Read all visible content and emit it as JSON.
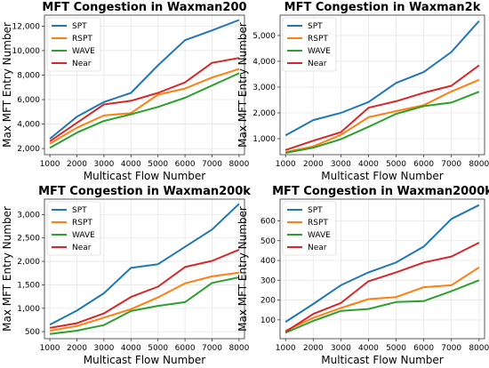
{
  "chart_data": [
    {
      "type": "line",
      "title": "MFT Congestion in Waxman200",
      "xlabel": "Multicast Flow Number",
      "ylabel": "Max MFT Entry Number",
      "x": [
        1000,
        2000,
        3000,
        4000,
        5000,
        6000,
        7000,
        8000
      ],
      "xlim": [
        800,
        8200
      ],
      "ylim": [
        1500,
        12900
      ],
      "yticks": [
        2000,
        4000,
        6000,
        8000,
        10000,
        12000
      ],
      "ytick_labels": [
        "2,000",
        "4,000",
        "6,000",
        "8,000",
        "10,000",
        "12,000"
      ],
      "grid": true,
      "legend": "top-left",
      "series": [
        {
          "name": "SPT",
          "color": "#1f77b4",
          "values": [
            2800,
            4600,
            5800,
            6550,
            8800,
            10850,
            11650,
            12500
          ]
        },
        {
          "name": "RSPT",
          "color": "#ff7f0e",
          "values": [
            2400,
            3700,
            4700,
            4900,
            6400,
            6900,
            7800,
            8500
          ]
        },
        {
          "name": "WAVE",
          "color": "#2ca02c",
          "values": [
            2050,
            3300,
            4250,
            4800,
            5400,
            6150,
            7150,
            8150
          ]
        },
        {
          "name": "Near",
          "color": "#d62728",
          "values": [
            2600,
            4100,
            5600,
            5900,
            6550,
            7400,
            9000,
            9400
          ]
        }
      ]
    },
    {
      "type": "line",
      "title": "MFT Congestion in Waxman2k",
      "xlabel": "Multicast Flow Number",
      "ylabel": "Max MFT Entry Number",
      "x": [
        1000,
        2000,
        3000,
        4000,
        5000,
        6000,
        7000,
        8000
      ],
      "xlim": [
        800,
        8200
      ],
      "ylim": [
        380,
        5790
      ],
      "yticks": [
        1000,
        2000,
        3000,
        4000,
        5000
      ],
      "ytick_labels": [
        "1,000",
        "2,000",
        "3,000",
        "4,000",
        "5,000"
      ],
      "grid": true,
      "legend": "top-left",
      "series": [
        {
          "name": "SPT",
          "color": "#1f77b4",
          "values": [
            1130,
            1720,
            2000,
            2420,
            3160,
            3580,
            4360,
            5560
          ]
        },
        {
          "name": "RSPT",
          "color": "#ff7f0e",
          "values": [
            480,
            700,
            1150,
            1830,
            2070,
            2300,
            2830,
            3280
          ]
        },
        {
          "name": "WAVE",
          "color": "#2ca02c",
          "values": [
            450,
            650,
            980,
            1460,
            1960,
            2260,
            2400,
            2820
          ]
        },
        {
          "name": "Near",
          "color": "#d62728",
          "values": [
            560,
            920,
            1250,
            2200,
            2450,
            2780,
            3050,
            3840
          ]
        }
      ]
    },
    {
      "type": "line",
      "title": "MFT Congestion in Waxman200k",
      "xlabel": "Multicast Flow Number",
      "ylabel": "Max MFT Entry Number",
      "x": [
        1000,
        2000,
        3000,
        4000,
        5000,
        6000,
        7000,
        8000
      ],
      "xlim": [
        800,
        8200
      ],
      "ylim": [
        350,
        3330
      ],
      "yticks": [
        500,
        1000,
        1500,
        2000,
        2500,
        3000
      ],
      "ytick_labels": [
        "500",
        "1,000",
        "1,500",
        "2,000",
        "2,500",
        "3,000"
      ],
      "grid": true,
      "legend": "top-left",
      "series": [
        {
          "name": "SPT",
          "color": "#1f77b4",
          "values": [
            650,
            950,
            1320,
            1860,
            1940,
            2310,
            2680,
            3230
          ]
        },
        {
          "name": "RSPT",
          "color": "#ff7f0e",
          "values": [
            520,
            620,
            800,
            980,
            1230,
            1530,
            1680,
            1760
          ]
        },
        {
          "name": "WAVE",
          "color": "#2ca02c",
          "values": [
            450,
            520,
            640,
            940,
            1050,
            1130,
            1540,
            1660
          ]
        },
        {
          "name": "Near",
          "color": "#d62728",
          "values": [
            580,
            680,
            890,
            1240,
            1460,
            1880,
            2010,
            2250
          ]
        }
      ]
    },
    {
      "type": "line",
      "title": "MFT Congestion in Waxman2000k",
      "xlabel": "Multicast Flow Number",
      "ylabel": "Max MFT Entry Number",
      "x": [
        1000,
        2000,
        3000,
        4000,
        5000,
        6000,
        7000,
        8000
      ],
      "xlim": [
        800,
        8200
      ],
      "ylim": [
        5,
        710
      ],
      "yticks": [
        100,
        200,
        300,
        400,
        500,
        600
      ],
      "ytick_labels": [
        "100",
        "200",
        "300",
        "400",
        "500",
        "600"
      ],
      "grid": true,
      "legend": "top-left",
      "series": [
        {
          "name": "SPT",
          "color": "#1f77b4",
          "values": [
            90,
            180,
            275,
            340,
            390,
            470,
            610,
            680
          ]
        },
        {
          "name": "RSPT",
          "color": "#ff7f0e",
          "values": [
            45,
            110,
            160,
            205,
            215,
            265,
            275,
            365
          ]
        },
        {
          "name": "WAVE",
          "color": "#2ca02c",
          "values": [
            35,
            95,
            145,
            155,
            190,
            195,
            245,
            300
          ]
        },
        {
          "name": "Near",
          "color": "#d62728",
          "values": [
            40,
            130,
            185,
            295,
            340,
            390,
            420,
            490
          ]
        }
      ]
    }
  ]
}
